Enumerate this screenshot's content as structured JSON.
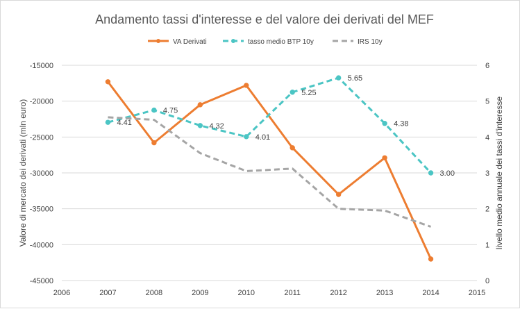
{
  "chart_data": {
    "type": "line",
    "title": "Andamento tassi d'interesse e del valore dei derivati del MEF",
    "x": [
      2007,
      2008,
      2009,
      2010,
      2011,
      2012,
      2013,
      2014
    ],
    "xlim": [
      2006,
      2015
    ],
    "xticks": [
      "2006",
      "2007",
      "2008",
      "2009",
      "2010",
      "2011",
      "2012",
      "2013",
      "2014",
      "2015"
    ],
    "ylabel": "Valore di mercato dei derivati (mln euro)",
    "ylim": [
      -45000,
      -15000
    ],
    "yticks": [
      "-15000",
      "-20000",
      "-25000",
      "-30000",
      "-35000",
      "-40000",
      "-45000"
    ],
    "y2label": "livello medio annuale dei tassi d'interesse",
    "y2lim": [
      0,
      6
    ],
    "y2ticks": [
      "6",
      "5",
      "4",
      "3",
      "2",
      "1",
      "0"
    ],
    "legend_position": "top",
    "series": [
      {
        "name": "VA Derivati",
        "axis": "left",
        "color": "#ED7D31",
        "style": "solid",
        "markers": true,
        "values": [
          -17300,
          -25800,
          -20500,
          -17800,
          -26500,
          -33000,
          -27900,
          -42000
        ]
      },
      {
        "name": "tasso medio BTP 10y",
        "axis": "right",
        "color": "#4BC5C4",
        "style": "dashed",
        "markers": true,
        "values": [
          4.41,
          4.75,
          4.32,
          4.01,
          5.25,
          5.65,
          4.38,
          3.0
        ],
        "labels": [
          "4.41",
          "4.75",
          "4.32",
          "4.01",
          "5.25",
          "5.65",
          "4.38",
          "3.00"
        ]
      },
      {
        "name": "IRS 10y",
        "axis": "right",
        "color": "#A5A5A5",
        "style": "dashed",
        "markers": false,
        "values": [
          4.55,
          4.48,
          3.55,
          3.05,
          3.12,
          2.0,
          1.95,
          1.5
        ]
      }
    ]
  }
}
